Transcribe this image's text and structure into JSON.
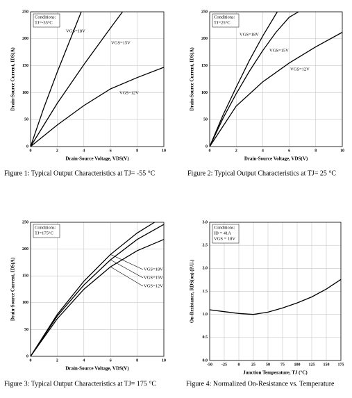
{
  "chart_data": [
    {
      "type": "line",
      "caption": "Figure 1: Typical Output Characteristics at TJ= -55 °C",
      "xlabel": "Drain-Source Voltage, VDS(V)",
      "ylabel": "Drain-Source Current, IDS(A)",
      "conditions": [
        "Conditions:",
        "TJ=-55°C"
      ],
      "xlim": [
        0,
        10
      ],
      "xticks": [
        0,
        2,
        4,
        6,
        8,
        10
      ],
      "ylim": [
        0,
        250
      ],
      "yticks": [
        0,
        50,
        100,
        150,
        200,
        250
      ],
      "grid": true,
      "series": [
        {
          "name": "VGS=18V",
          "color": "#000000",
          "x": [
            0,
            1,
            2,
            3,
            3.8
          ],
          "values": [
            0,
            72,
            138,
            200,
            250
          ]
        },
        {
          "name": "VGS=15V",
          "color": "#000000",
          "x": [
            0,
            2,
            4,
            6,
            6.9
          ],
          "values": [
            0,
            80,
            152,
            220,
            250
          ]
        },
        {
          "name": "VGS=12V",
          "color": "#000000",
          "x": [
            0,
            2,
            4,
            6,
            8,
            10
          ],
          "values": [
            0,
            40,
            76,
            107,
            128,
            147
          ]
        }
      ]
    },
    {
      "type": "line",
      "caption": "Figure 2: Typical Output Characteristics at TJ= 25 °C",
      "xlabel": "Drain-Source Voltage, VDS(V)",
      "ylabel": "Drain-Source Current, IDS(A)",
      "conditions": [
        "Conditions:",
        "TJ=25°C"
      ],
      "xlim": [
        0,
        10
      ],
      "xticks": [
        0,
        2,
        4,
        6,
        8,
        10
      ],
      "ylim": [
        0,
        250
      ],
      "yticks": [
        0,
        50,
        100,
        150,
        200,
        250
      ],
      "grid": true,
      "series": [
        {
          "name": "VGS=18V",
          "color": "#000000",
          "x": [
            0,
            1,
            2,
            3,
            4,
            5.1
          ],
          "values": [
            0,
            58,
            110,
            160,
            205,
            250
          ]
        },
        {
          "name": "VGS=15V",
          "color": "#000000",
          "x": [
            0,
            1,
            2,
            3,
            4,
            5,
            6,
            6.7
          ],
          "values": [
            0,
            52,
            98,
            140,
            178,
            212,
            240,
            250
          ]
        },
        {
          "name": "VGS=12V",
          "color": "#000000",
          "x": [
            0,
            2,
            4,
            6,
            8,
            10
          ],
          "values": [
            0,
            75,
            120,
            155,
            185,
            212
          ]
        }
      ]
    },
    {
      "type": "line",
      "caption": "Figure 3: Typical Output Characteristics at TJ= 175 °C",
      "xlabel": "Drain-Source Voltage, VDS(V)",
      "ylabel": "Drain-Source Current, IDS(A)",
      "conditions": [
        "Conditions:",
        "TJ=175°C"
      ],
      "xlim": [
        0,
        10
      ],
      "xticks": [
        0,
        2,
        4,
        6,
        8,
        10
      ],
      "ylim": [
        0,
        250
      ],
      "yticks": [
        0,
        50,
        100,
        150,
        200,
        250
      ],
      "grid": true,
      "series": [
        {
          "name": "VGS=18V",
          "color": "#000000",
          "x": [
            0,
            2,
            4,
            6,
            8,
            9.3
          ],
          "values": [
            0,
            78,
            140,
            190,
            230,
            250
          ]
        },
        {
          "name": "VGS=15V",
          "color": "#000000",
          "x": [
            0,
            2,
            4,
            6,
            8,
            10
          ],
          "values": [
            0,
            75,
            133,
            180,
            218,
            246
          ]
        },
        {
          "name": "VGS=12V",
          "color": "#000000",
          "x": [
            0,
            2,
            4,
            6,
            8,
            10
          ],
          "values": [
            0,
            70,
            125,
            167,
            197,
            218
          ]
        }
      ]
    },
    {
      "type": "line",
      "caption": "Figure 4: Normalized On-Resistance vs. Temperature",
      "xlabel": "Junction Temperature, TJ (°C)",
      "ylabel": "On-Resistance, RDS(on) (P.U.)",
      "conditions": [
        "Conditions:",
        "ID = 41A",
        "VGS = 18V"
      ],
      "xlim": [
        -50,
        175
      ],
      "xticks": [
        -50,
        -25,
        0,
        25,
        50,
        75,
        100,
        125,
        150,
        175
      ],
      "ylim": [
        0,
        3
      ],
      "yticks": [
        {
          "value": 0,
          "label": "0.0"
        },
        {
          "value": 0.5,
          "label": "0.5"
        },
        {
          "value": 1,
          "label": "1.0"
        },
        {
          "value": 1.5,
          "label": "1.5"
        },
        {
          "value": 2,
          "label": "2.0"
        },
        {
          "value": 2.5,
          "label": "2.5"
        },
        {
          "value": 3,
          "label": "3.0"
        }
      ],
      "grid": true,
      "series": [
        {
          "color": "#000000",
          "x": [
            -50,
            -25,
            0,
            25,
            50,
            75,
            100,
            125,
            150,
            175
          ],
          "values": [
            1.1,
            1.06,
            1.02,
            1.0,
            1.05,
            1.14,
            1.25,
            1.38,
            1.55,
            1.76
          ]
        }
      ]
    }
  ]
}
